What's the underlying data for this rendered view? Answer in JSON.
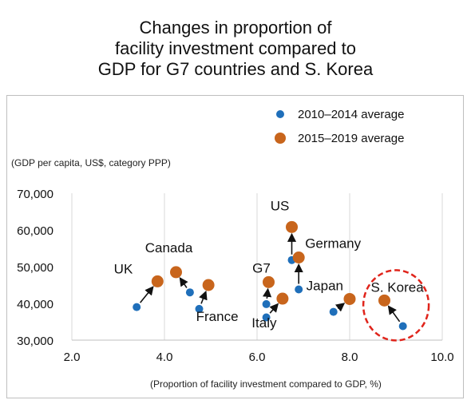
{
  "title_lines": [
    "Changes in proportion of",
    "facility investment compared to",
    "GDP for G7 countries and S. Korea"
  ],
  "chart_data": {
    "type": "scatter",
    "title": "Changes in proportion of facility investment compared to GDP for G7 countries and S. Korea",
    "xlabel": "(Proportion of facility investment compared to GDP, %)",
    "ylabel": "(GDP per capita, US$, category PPP)",
    "xlim": [
      2.0,
      10.0
    ],
    "ylim": [
      30000,
      70000
    ],
    "x_ticks": [
      "2.0",
      "4.0",
      "6.0",
      "8.0",
      "10.0"
    ],
    "y_ticks": [
      "30,000",
      "40,000",
      "50,000",
      "60,000",
      "70,000"
    ],
    "grid": "vertical",
    "legend_position": "top-right",
    "series": [
      {
        "name": "2010–2014 average",
        "color": "#1f6fba",
        "points": [
          {
            "label": "UK",
            "x": 3.4,
            "y": 39000
          },
          {
            "label": "Canada",
            "x": 4.55,
            "y": 43000
          },
          {
            "label": "France",
            "x": 4.75,
            "y": 38500
          },
          {
            "label": "G7",
            "x": 6.2,
            "y": 39800
          },
          {
            "label": "Italy",
            "x": 6.2,
            "y": 36200
          },
          {
            "label": "US",
            "x": 6.75,
            "y": 51800
          },
          {
            "label": "Germany",
            "x": 6.9,
            "y": 43800
          },
          {
            "label": "Japan",
            "x": 7.65,
            "y": 37700
          },
          {
            "label": "S. Korea",
            "x": 9.15,
            "y": 33800
          }
        ]
      },
      {
        "name": "2015–2019 average",
        "color": "#c8651c",
        "points": [
          {
            "label": "UK",
            "x": 3.85,
            "y": 46000
          },
          {
            "label": "Canada",
            "x": 4.25,
            "y": 48500
          },
          {
            "label": "France",
            "x": 4.95,
            "y": 45000
          },
          {
            "label": "G7",
            "x": 6.25,
            "y": 45800
          },
          {
            "label": "Italy",
            "x": 6.55,
            "y": 41300
          },
          {
            "label": "US",
            "x": 6.75,
            "y": 60800
          },
          {
            "label": "Germany",
            "x": 6.9,
            "y": 52500
          },
          {
            "label": "Japan",
            "x": 8.0,
            "y": 41200
          },
          {
            "label": "S. Korea",
            "x": 8.75,
            "y": 40800
          }
        ]
      }
    ],
    "annotations": [
      {
        "text": "UK"
      },
      {
        "text": "Canada"
      },
      {
        "text": "France"
      },
      {
        "text": "G7"
      },
      {
        "text": "Italy"
      },
      {
        "text": "US"
      },
      {
        "text": "Germany"
      },
      {
        "text": "Japan"
      },
      {
        "text": "S. Korea"
      }
    ],
    "highlight": {
      "label": "S. Korea",
      "style": "red dashed circle",
      "color": "#e0241b"
    }
  }
}
